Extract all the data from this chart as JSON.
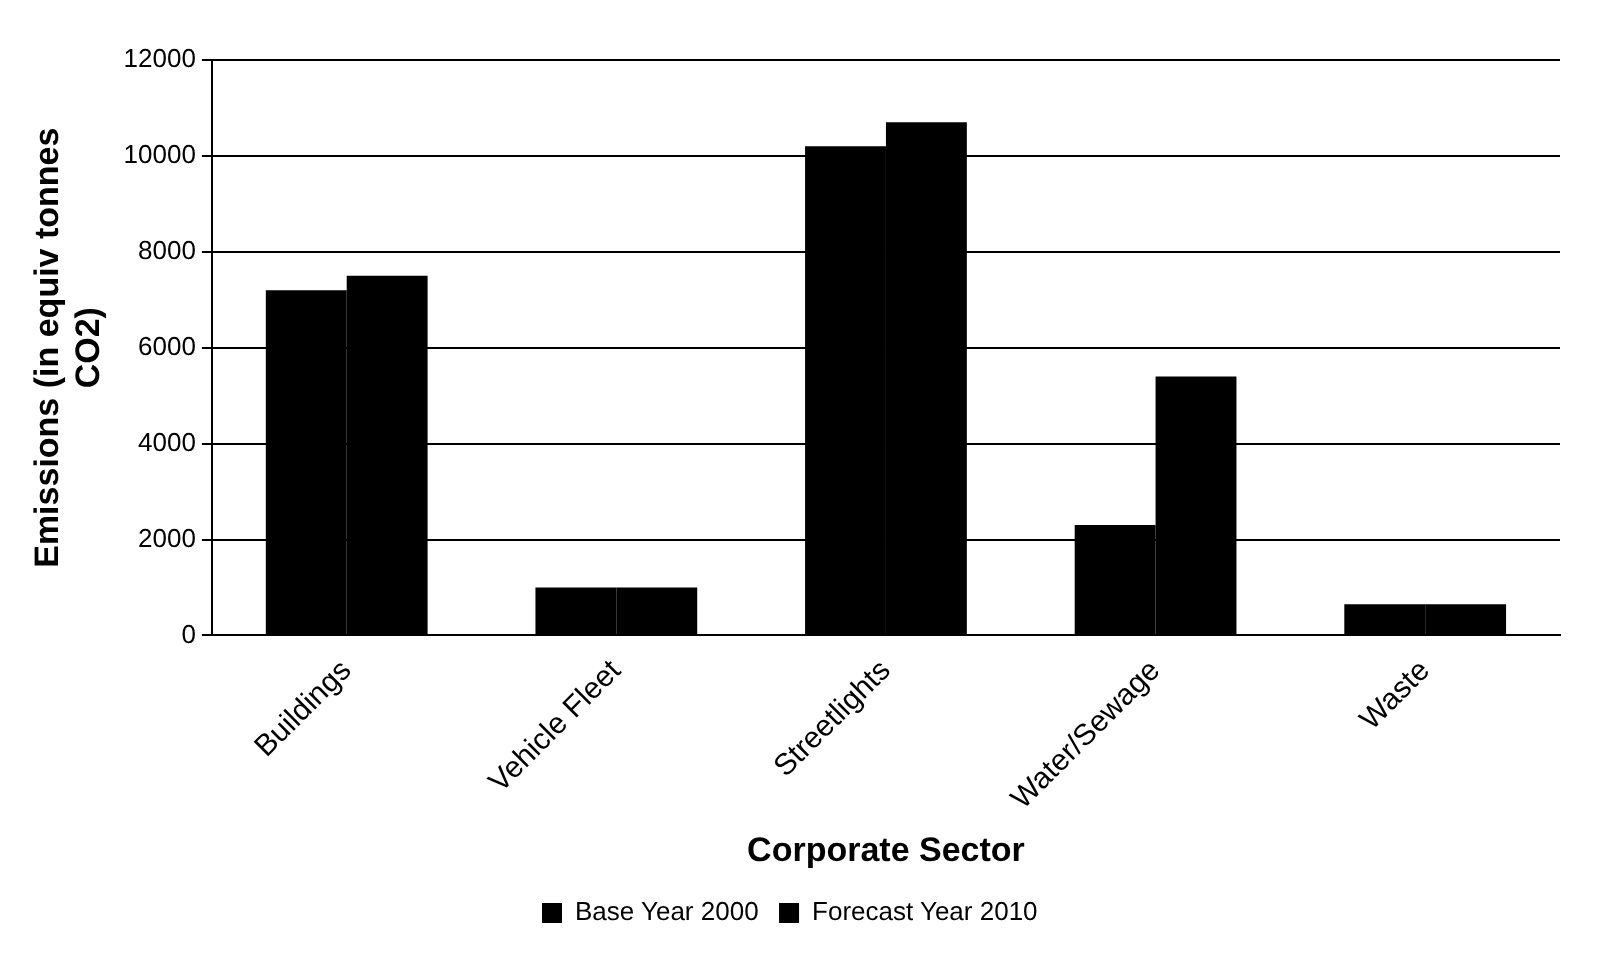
{
  "chart_data": {
    "type": "bar",
    "xlabel": "Corporate Sector",
    "ylabel": "Emissions (in equiv tonnes CO2)",
    "categories": [
      "Buildings",
      "Vehicle Fleet",
      "Streetlights",
      "Water/Sewage",
      "Waste"
    ],
    "series": [
      {
        "name": "Base Year 2000",
        "color": "#000000",
        "values": [
          7200,
          1000,
          10200,
          2300,
          650
        ]
      },
      {
        "name": "Forecast Year 2010",
        "color": "#000000",
        "values": [
          7500,
          1000,
          10700,
          5400,
          650
        ]
      }
    ],
    "ylim": [
      0,
      12000
    ],
    "yticks": [
      0,
      2000,
      4000,
      6000,
      8000,
      10000,
      12000
    ],
    "grid": "y",
    "legend": "bottom"
  }
}
